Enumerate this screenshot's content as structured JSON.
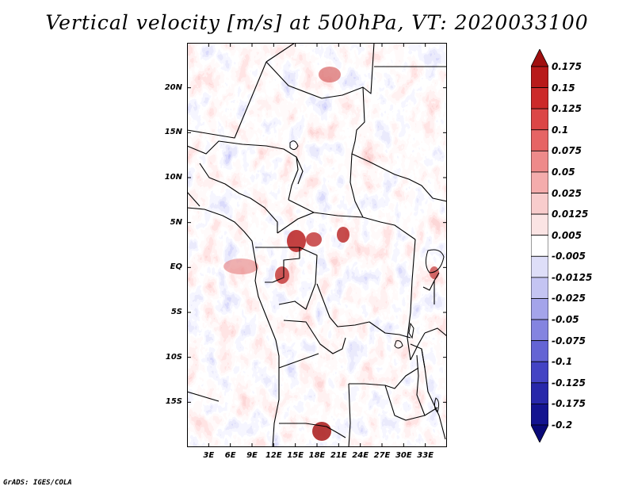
{
  "title": "Vertical velocity [m/s] at 500hPa, VT: 2020033100",
  "credit": "GrADS: IGES/COLA",
  "map": {
    "lon_range": [
      0,
      36
    ],
    "lat_range": [
      -20,
      25
    ],
    "lat_labels": [
      {
        "lat": 20,
        "text": "20N"
      },
      {
        "lat": 15,
        "text": "15N"
      },
      {
        "lat": 10,
        "text": "10N"
      },
      {
        "lat": 5,
        "text": "5N"
      },
      {
        "lat": 0,
        "text": "EQ"
      },
      {
        "lat": -5,
        "text": "5S"
      },
      {
        "lat": -10,
        "text": "10S"
      },
      {
        "lat": -15,
        "text": "15S"
      }
    ],
    "lon_labels": [
      {
        "lon": 3,
        "text": "3E"
      },
      {
        "lon": 6,
        "text": "6E"
      },
      {
        "lon": 9,
        "text": "9E"
      },
      {
        "lon": 12,
        "text": "12E"
      },
      {
        "lon": 15,
        "text": "15E"
      },
      {
        "lon": 18,
        "text": "18E"
      },
      {
        "lon": 21,
        "text": "21E"
      },
      {
        "lon": 24,
        "text": "24E"
      },
      {
        "lon": 27,
        "text": "27E"
      },
      {
        "lon": 30,
        "text": "30E"
      },
      {
        "lon": 33,
        "text": "33E"
      }
    ]
  },
  "colorbar": {
    "labels": [
      "0.175",
      "0.15",
      "0.125",
      "0.1",
      "0.075",
      "0.05",
      "0.025",
      "0.0125",
      "0.005",
      "-0.005",
      "-0.0125",
      "-0.025",
      "-0.05",
      "-0.075",
      "-0.1",
      "-0.125",
      "-0.175",
      "-0.2"
    ],
    "colors": [
      "#a01010",
      "#b81a1a",
      "#cc2a2a",
      "#dc4646",
      "#e66464",
      "#ee8a8a",
      "#f4acac",
      "#f8cccc",
      "#fbe4e4",
      "#ffffff",
      "#dedef8",
      "#c4c4f2",
      "#a4a4ea",
      "#8484e0",
      "#6464d4",
      "#4444c4",
      "#2828aa",
      "#141490",
      "#0a0a78"
    ]
  }
}
